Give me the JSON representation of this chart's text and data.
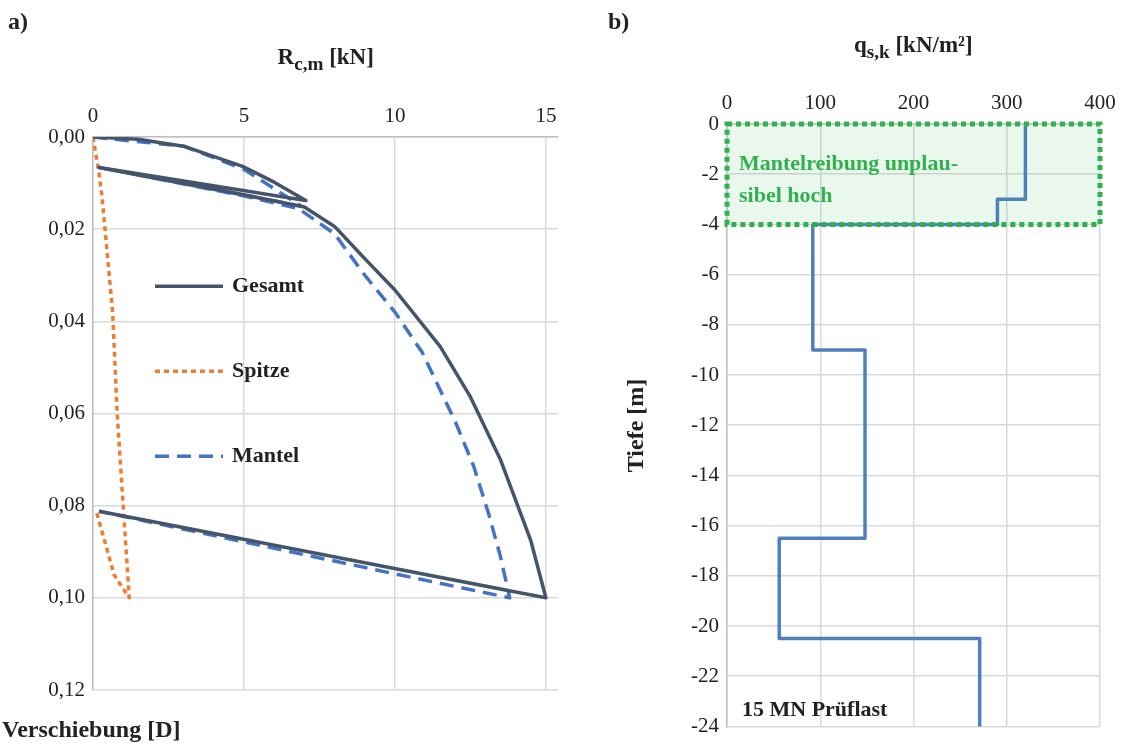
{
  "chart_data": [
    {
      "type": "line",
      "title": "a)",
      "xlabel": "R$_{c,m}$ [kN]",
      "ylabel": "Verschiebung [D]",
      "xlim": [
        0,
        15.4
      ],
      "xticks": [
        0,
        5,
        10,
        15
      ],
      "ylim": [
        0.12,
        0
      ],
      "yticks": [
        {
          "value": 0,
          "label": "0,00"
        },
        {
          "value": 0.02,
          "label": "0,02"
        },
        {
          "value": 0.04,
          "label": "0,04"
        },
        {
          "value": 0.06,
          "label": "0,06"
        },
        {
          "value": 0.08,
          "label": "0,08"
        },
        {
          "value": 0.1,
          "label": "0,10"
        },
        {
          "value": 0.12,
          "label": "0,12"
        }
      ],
      "grid": true,
      "legend": "left",
      "marker": "none",
      "series": [
        {
          "name": "Gesamt",
          "color": "#44546a",
          "line_style": "solid",
          "x": [
            0,
            1.5,
            3,
            5,
            6,
            7.05,
            0.2,
            5,
            7,
            8,
            9,
            10,
            11.5,
            12.5,
            13.5,
            14.5,
            15,
            0.2
          ],
          "values": [
            0,
            0.0005,
            0.002,
            0.0065,
            0.0098,
            0.0138,
            0.0066,
            0.0125,
            0.0152,
            0.0194,
            0.0264,
            0.0332,
            0.0455,
            0.0564,
            0.0701,
            0.0876,
            0.1,
            0.0812
          ]
        },
        {
          "name": "Spitze",
          "color": "#ed7d31",
          "line_style": "dotted",
          "x": [
            0,
            0.2,
            0.3,
            0.65,
            0.8,
            1.0,
            1.2,
            0.7,
            0.1
          ],
          "values": [
            0,
            0.008,
            0.013,
            0.038,
            0.06,
            0.08,
            0.1,
            0.095,
            0.081
          ]
        },
        {
          "name": "Mantel",
          "color": "#4472c4",
          "line_style": "dashed",
          "x": [
            0,
            3,
            5,
            6.9,
            0.2,
            5,
            6.8,
            8,
            9,
            10,
            10.9,
            12,
            12.6,
            13.1,
            13.5,
            13.8,
            10,
            0.2
          ],
          "values": [
            0,
            0.002,
            0.007,
            0.015,
            0.0066,
            0.0128,
            0.0155,
            0.021,
            0.03,
            0.038,
            0.0467,
            0.0618,
            0.0713,
            0.0817,
            0.0912,
            0.1,
            0.0948,
            0.0812
          ]
        }
      ]
    },
    {
      "type": "line",
      "title": "b)",
      "xlabel": "q$_{s,k}$ [kN/m²]",
      "ylabel": "Tiefe [m]",
      "xlim": [
        0,
        400
      ],
      "xticks": [
        0,
        100,
        200,
        300,
        400
      ],
      "ylim": [
        -24,
        0
      ],
      "yticks": [
        0,
        -2,
        -4,
        -6,
        -8,
        -10,
        -12,
        -14,
        -16,
        -18,
        -20,
        -22,
        -24
      ],
      "grid": true,
      "marker": "none",
      "line_style": "solid",
      "series": [
        {
          "color": "#4e7fc0",
          "x": [
            320,
            320,
            290,
            290,
            92,
            92,
            148,
            148,
            56,
            56,
            271,
            271
          ],
          "values": [
            0,
            -3,
            -3,
            -4,
            -4,
            -9,
            -9,
            -16.5,
            -16.5,
            -20.5,
            -20.5,
            -24
          ]
        }
      ],
      "bands": [
        {
          "axis": "y",
          "from": -4,
          "to": 0,
          "label": "Mantelreibung unplau-\nsibel hoch",
          "color": "#2fb24e"
        }
      ],
      "annotations": [
        "15 MN Prüflast"
      ]
    }
  ]
}
